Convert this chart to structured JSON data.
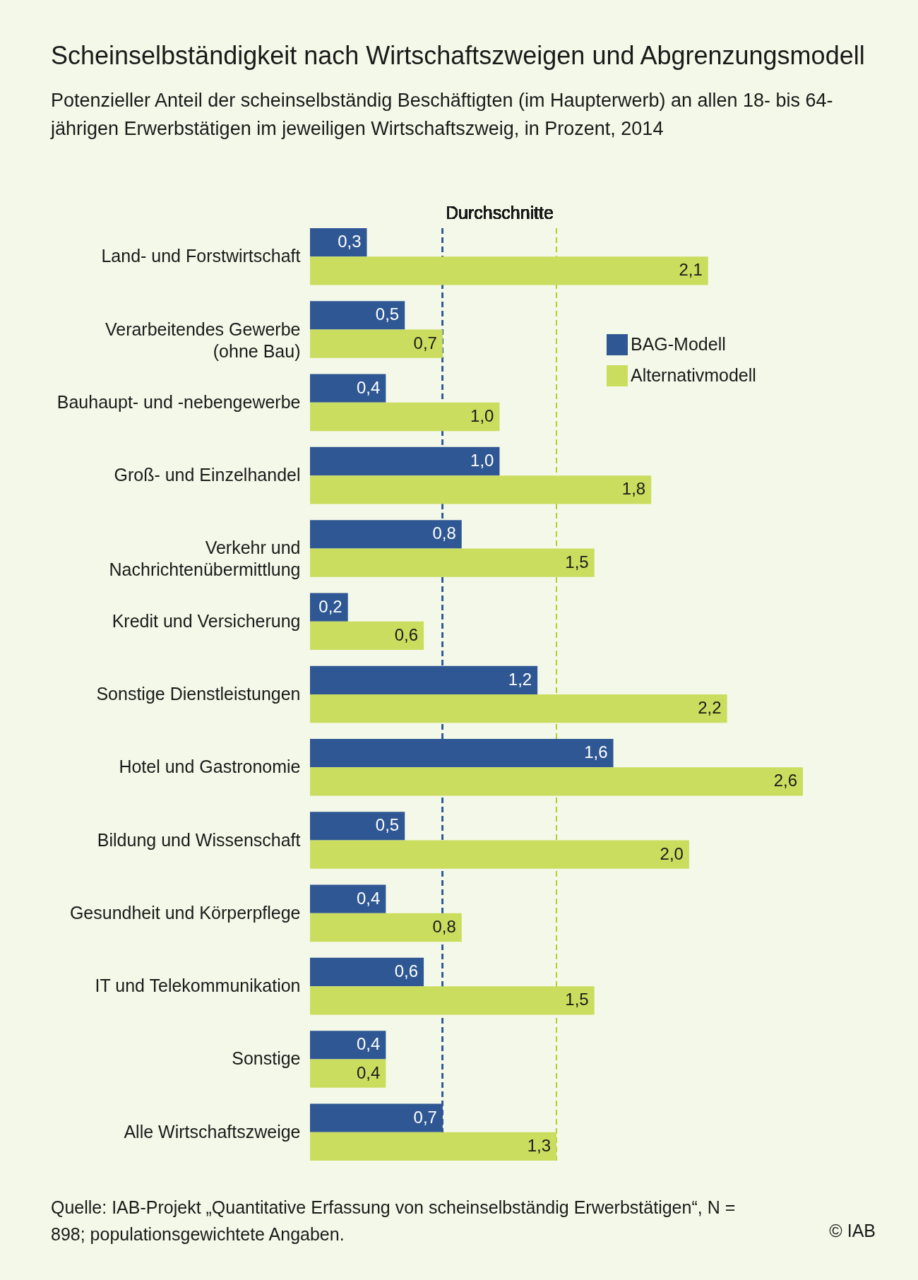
{
  "chart_data": {
    "type": "bar",
    "orientation": "horizontal",
    "title": "Scheinselbständigkeit nach Wirtschaftszweigen und Abgrenzungsmodell",
    "subtitle": "Potenzieller Anteil der scheinselbständig Beschäftigten (im Haupterwerb) an allen 18- bis 64-jährigen Erwerbstätigen im jeweiligen Wirtschaftszweig, in Prozent, 2014",
    "categories": [
      "Land- und Forstwirtschaft",
      "Verarbeitendes Gewerbe (ohne Bau)",
      "Bauhaupt- und -nebengewerbe",
      "Groß- und Einzelhandel",
      "Verkehr und Nachrichtenübermittlung",
      "Kredit und Versicherung",
      "Sonstige Dienstleistungen",
      "Hotel und Gastronomie",
      "Bildung und Wissenschaft",
      "Gesundheit und Körperpflege",
      "IT und Telekommunikation",
      "Sonstige",
      "Alle Wirtschaftszweige"
    ],
    "series": [
      {
        "name": "BAG-Modell",
        "color": "#2f5793",
        "values": [
          0.3,
          0.5,
          0.4,
          1.0,
          0.8,
          0.2,
          1.2,
          1.6,
          0.5,
          0.4,
          0.6,
          0.4,
          0.7
        ],
        "value_labels": [
          "0,3",
          "0,5",
          "0,4",
          "1,0",
          "0,8",
          "0,2",
          "1,2",
          "1,6",
          "0,5",
          "0,4",
          "0,6",
          "0,4",
          "0,7"
        ]
      },
      {
        "name": "Alternativmodell",
        "color": "#cadd5f",
        "values": [
          2.1,
          0.7,
          1.0,
          1.8,
          1.5,
          0.6,
          2.2,
          2.6,
          2.0,
          0.8,
          1.5,
          0.4,
          1.3
        ],
        "value_labels": [
          "2,1",
          "0,7",
          "1,0",
          "1,8",
          "1,5",
          "0,6",
          "2,2",
          "2,6",
          "2,0",
          "0,8",
          "1,5",
          "0,4",
          "1,3"
        ]
      }
    ],
    "legend": "top right",
    "tick_labels": "y",
    "grid": false,
    "ref_lines": [
      {
        "axis": "x",
        "value": 0.7,
        "color": "#2f5793",
        "line_style": "dashed"
      },
      {
        "axis": "x",
        "value": 1.3,
        "color": "#b5cc3a",
        "line_style": "dashed"
      }
    ],
    "annotations": [
      "Durchschnitte",
      "Quelle: IAB-Projekt „Quantitative Erfassung von scheinselbständig Erwerbstätigen“, N = 898; populationsgewichtete Angaben.",
      "© IAB"
    ]
  }
}
